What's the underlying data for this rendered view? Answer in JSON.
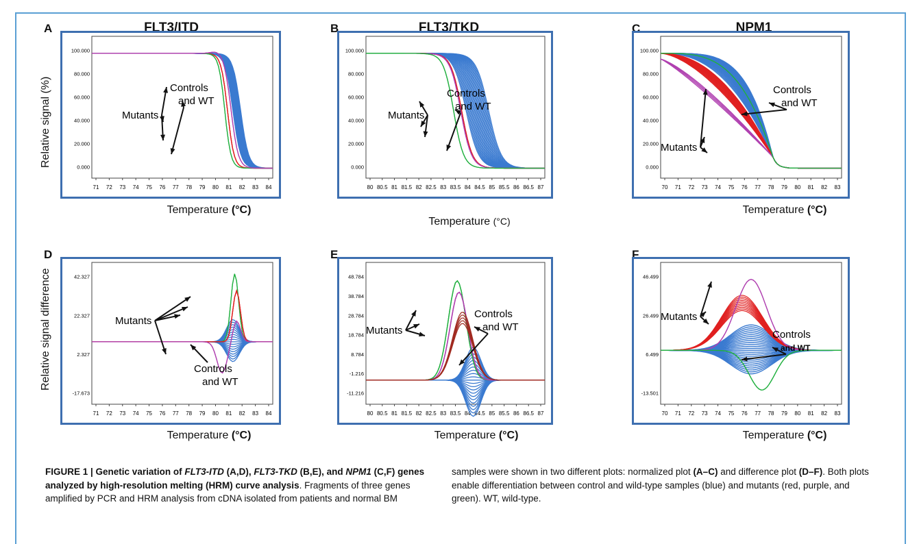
{
  "panels": [
    {
      "letter": "A",
      "title": "FLT3/ITD",
      "xlabel_main": "Temperature ",
      "xlabel_unit": "(°C)",
      "unit_bold": true,
      "ylabel": "Relative signal (%)",
      "xticks": [
        "71",
        "72",
        "73",
        "74",
        "75",
        "76",
        "77",
        "78",
        "79",
        "80",
        "81",
        "82",
        "83",
        "84"
      ],
      "yticks": [
        "100.000",
        "80.000",
        "60.000",
        "40.000",
        "20.000",
        "0.000"
      ],
      "annotations": {
        "mutants": "Mutants",
        "controls_1": "Controls",
        "controls_2": "and WT"
      }
    },
    {
      "letter": "B",
      "title": "FLT3/TKD",
      "xlabel_main": "Temperature ",
      "xlabel_unit": "(°C)",
      "unit_bold": false,
      "ylabel": "",
      "xticks": [
        "80",
        "80.5",
        "81",
        "81.5",
        "82",
        "82.5",
        "83",
        "83.5",
        "84",
        "84.5",
        "85",
        "85.5",
        "86",
        "86.5",
        "87"
      ],
      "yticks": [
        "100.000",
        "80.000",
        "60.000",
        "40.000",
        "20.000",
        "0.000"
      ],
      "annotations": {
        "mutants": "Mutants",
        "controls_1": "Controls",
        "controls_2": "and WT"
      }
    },
    {
      "letter": "C",
      "title": "NPM1",
      "xlabel_main": "Temperature ",
      "xlabel_unit": "(°C)",
      "unit_bold": true,
      "ylabel": "",
      "xticks": [
        "70",
        "71",
        "72",
        "73",
        "74",
        "75",
        "76",
        "77",
        "78",
        "79",
        "80",
        "81",
        "82",
        "83"
      ],
      "yticks": [
        "100.000",
        "80.000",
        "60.000",
        "40.000",
        "20.000",
        "0.000"
      ],
      "annotations": {
        "mutants": "Mutants",
        "controls_1": "Controls",
        "controls_2": "and WT"
      }
    },
    {
      "letter": "D",
      "title": "",
      "xlabel_main": "Temperature ",
      "xlabel_unit": "(°C)",
      "unit_bold": true,
      "ylabel": "Relative signal difference",
      "xticks": [
        "71",
        "72",
        "73",
        "74",
        "75",
        "76",
        "77",
        "78",
        "79",
        "80",
        "81",
        "82",
        "83",
        "84"
      ],
      "yticks": [
        "42.327",
        "22.327",
        "2.327",
        "-17.673"
      ],
      "annotations": {
        "mutants": "Mutants",
        "controls_1": "Controls",
        "controls_2": "and WT"
      }
    },
    {
      "letter": "E",
      "title": "",
      "xlabel_main": "Temperature ",
      "xlabel_unit": "(°C)",
      "unit_bold": true,
      "ylabel": "",
      "xticks": [
        "80",
        "80.5",
        "81",
        "81.5",
        "82",
        "82.5",
        "83",
        "83.5",
        "84",
        "84.5",
        "85",
        "85.5",
        "86",
        "86.5",
        "87"
      ],
      "yticks": [
        "48.784",
        "38.784",
        "28.784",
        "18.784",
        "8.784",
        "-1.216",
        "-11.216"
      ],
      "annotations": {
        "mutants": "Mutants",
        "controls_1": "Controls",
        "controls_2": "and WT"
      }
    },
    {
      "letter": "F",
      "title": "",
      "xlabel_main": "Temperature ",
      "xlabel_unit": "(°C)",
      "unit_bold": true,
      "ylabel": "",
      "xticks": [
        "70",
        "71",
        "72",
        "73",
        "74",
        "75",
        "76",
        "77",
        "78",
        "79",
        "80",
        "81",
        "82",
        "83"
      ],
      "yticks": [
        "46.499",
        "26.499",
        "6.499",
        "-13.501"
      ],
      "annotations": {
        "mutants": "Mutants",
        "controls_1": "Controls",
        "controls_2": "and WT"
      }
    }
  ],
  "caption": {
    "left_html": "<b>FIGURE 1 | Genetic variation of <i>FLT3-ITD</i> (A,D), <i>FLT3-TKD</i> (B,E), and <i>NPM1</i> (C,F) genes analyzed by high-resolution melting (HRM) curve analysis</b>. Fragments of three genes amplified by PCR and HRM analysis from cDNA isolated from patients and normal BM",
    "right_html": "samples were shown in two different plots: normalized plot <b>(A–C)</b> and difference plot <b>(D–F)</b>. Both plots enable differentiation between control and wild-type samples (blue) and mutants (red, purple, and green). WT, wild-type."
  },
  "colors": {
    "frame": "#5a9fd4",
    "wt": "#3a7ad0",
    "red": "#e02020",
    "purple": "#b040b0",
    "green": "#22b040",
    "plot_border": "#3e6fb0"
  }
}
